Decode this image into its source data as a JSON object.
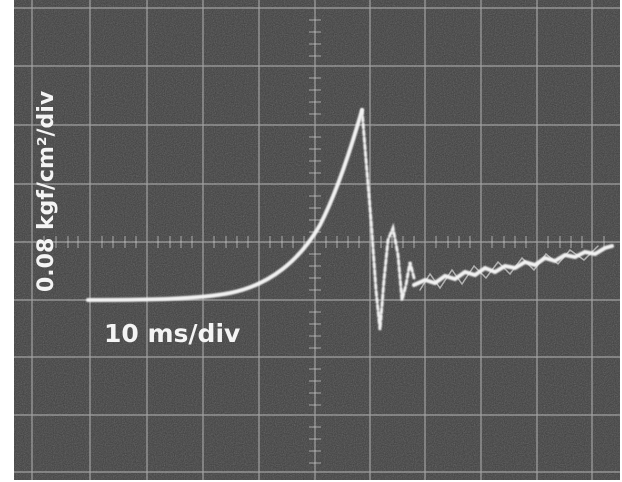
{
  "screen": {
    "vertical_scale": "0.08 kgf/cm²/div",
    "horizontal_scale": "10 ms/div"
  }
}
